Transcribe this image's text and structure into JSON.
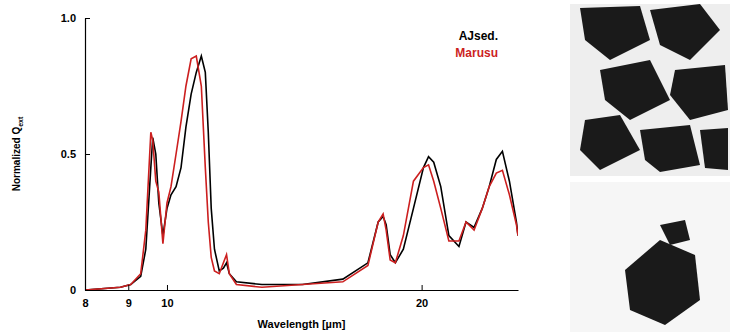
{
  "chart_data": {
    "type": "line",
    "x_label": "Wavelength [µm]",
    "y_label": "Normalized Q",
    "y_label_subscript": "ext",
    "log": "x",
    "legend": "top-right",
    "xlim": [
      8,
      26
    ],
    "xticks": [
      8,
      9,
      10,
      20
    ],
    "ylim": [
      0,
      1
    ],
    "yticks": [
      0,
      0.5,
      {
        "value": 1,
        "label": "1.0"
      }
    ],
    "x": [
      8.0,
      8.81,
      9.06,
      9.31,
      9.44,
      9.57,
      9.62,
      9.7,
      9.78,
      9.89,
      10.0,
      10.11,
      10.25,
      10.39,
      10.53,
      10.68,
      10.83,
      10.98,
      11.1,
      11.19,
      11.28,
      11.38,
      11.53,
      11.66,
      11.76,
      11.85,
      12.08,
      12.95,
      14.46,
      16.14,
      17.28,
      17.77,
      18.01,
      18.16,
      18.36,
      18.62,
      19.03,
      19.56,
      20.1,
      20.38,
      20.67,
      21.07,
      21.54,
      22.14,
      22.57,
      23.07,
      23.59,
      24.04,
      24.51,
      24.92,
      25.4,
      25.89,
      26.0
    ],
    "series": [
      {
        "name": "AJsed.",
        "color": "#000000",
        "line_style": "solid",
        "values": [
          0.0,
          0.01,
          0.02,
          0.05,
          0.15,
          0.45,
          0.56,
          0.5,
          0.32,
          0.2,
          0.3,
          0.35,
          0.38,
          0.45,
          0.6,
          0.72,
          0.8,
          0.86,
          0.8,
          0.58,
          0.3,
          0.15,
          0.07,
          0.08,
          0.1,
          0.06,
          0.03,
          0.02,
          0.02,
          0.04,
          0.1,
          0.25,
          0.27,
          0.24,
          0.13,
          0.1,
          0.15,
          0.3,
          0.45,
          0.49,
          0.47,
          0.38,
          0.2,
          0.16,
          0.25,
          0.23,
          0.3,
          0.38,
          0.48,
          0.51,
          0.4,
          0.25,
          0.2
        ]
      },
      {
        "name": "Marusu",
        "color": "#cc1f1f",
        "line_style": "solid",
        "values": [
          0.0,
          0.01,
          0.02,
          0.06,
          0.22,
          0.58,
          0.55,
          0.4,
          0.36,
          0.17,
          0.32,
          0.38,
          0.5,
          0.62,
          0.75,
          0.85,
          0.86,
          0.75,
          0.45,
          0.25,
          0.12,
          0.07,
          0.06,
          0.1,
          0.13,
          0.06,
          0.02,
          0.01,
          0.02,
          0.03,
          0.09,
          0.25,
          0.28,
          0.22,
          0.11,
          0.1,
          0.2,
          0.4,
          0.45,
          0.46,
          0.4,
          0.3,
          0.18,
          0.18,
          0.25,
          0.22,
          0.3,
          0.38,
          0.43,
          0.44,
          0.35,
          0.24,
          0.2
        ]
      }
    ]
  }
}
